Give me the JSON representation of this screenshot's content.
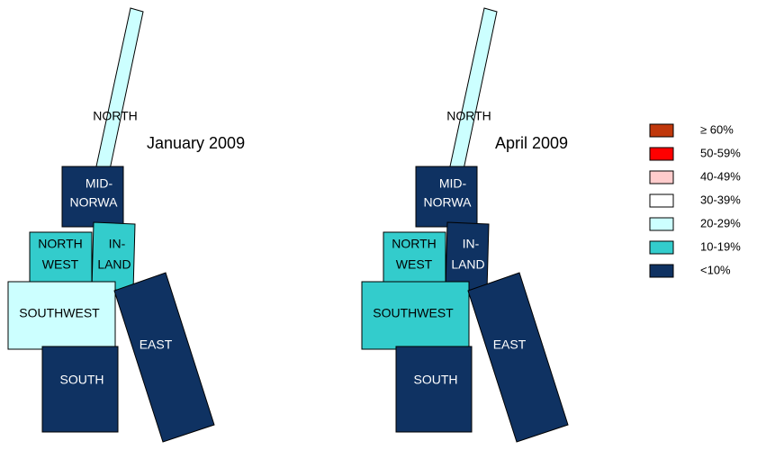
{
  "maps": [
    {
      "title": "January 2009",
      "regions": [
        {
          "lines": [
            "NORTH"
          ],
          "color": "#ccffff"
        },
        {
          "lines": [
            "MID-",
            "NORWA"
          ],
          "color": "#0f3262"
        },
        {
          "lines": [
            "NORTH",
            "WEST"
          ],
          "color": "#33cccc"
        },
        {
          "lines": [
            "IN-",
            "LAND"
          ],
          "color": "#33cccc"
        },
        {
          "lines": [
            "SOUTHWEST"
          ],
          "color": "#ccffff"
        },
        {
          "lines": [
            "EAST"
          ],
          "color": "#0f3262"
        },
        {
          "lines": [
            "SOUTH"
          ],
          "color": "#0f3262"
        }
      ]
    },
    {
      "title": "April 2009",
      "regions": [
        {
          "lines": [
            "NORTH"
          ],
          "color": "#ccffff"
        },
        {
          "lines": [
            "MID-",
            "NORWA"
          ],
          "color": "#0f3262"
        },
        {
          "lines": [
            "NORTH",
            "WEST"
          ],
          "color": "#33cccc"
        },
        {
          "lines": [
            "IN-",
            "LAND"
          ],
          "color": "#0f3262"
        },
        {
          "lines": [
            "SOUTHWEST"
          ],
          "color": "#33cccc"
        },
        {
          "lines": [
            "EAST"
          ],
          "color": "#0f3262"
        },
        {
          "lines": [
            "SOUTH"
          ],
          "color": "#0f3262"
        }
      ]
    }
  ],
  "legend": [
    {
      "label": "≥ 60%",
      "color": "#c0380c"
    },
    {
      "label": "50-59%",
      "color": "#ff0000"
    },
    {
      "label": "40-49%",
      "color": "#ffcccc"
    },
    {
      "label": "30-39%",
      "color": "#ffffff"
    },
    {
      "label": "20-29%",
      "color": "#ccffff"
    },
    {
      "label": "10-19%",
      "color": "#33cccc"
    },
    {
      "label": "<10%",
      "color": "#0f3262"
    }
  ]
}
